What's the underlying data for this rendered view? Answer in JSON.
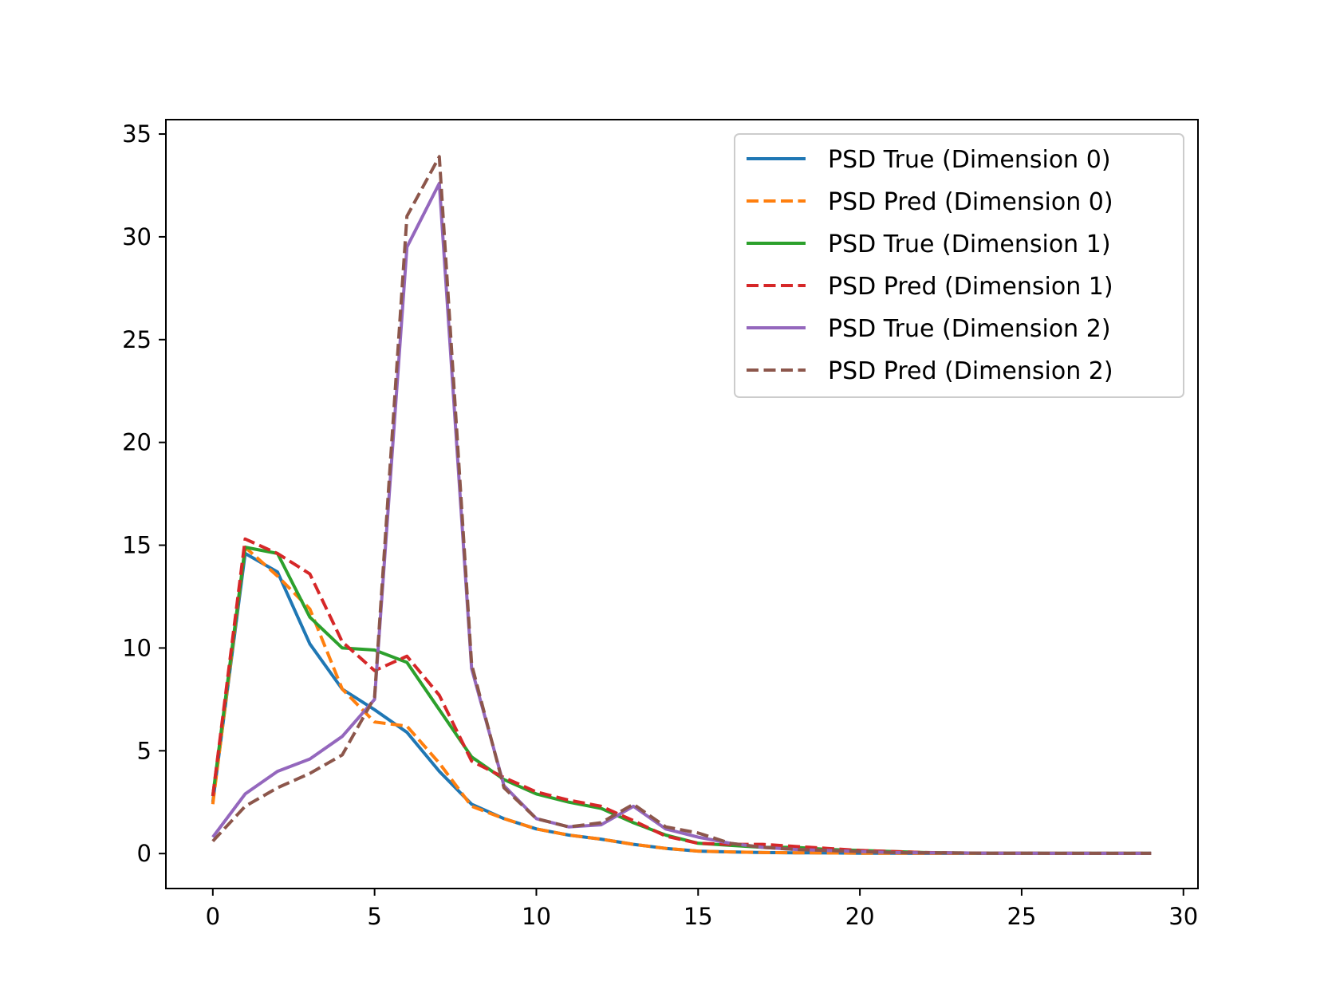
{
  "chart_data": {
    "type": "line",
    "title": "",
    "xlabel": "",
    "ylabel": "",
    "xlim": [
      -1.45,
      30.45
    ],
    "ylim": [
      -1.7,
      35.7
    ],
    "xticks": [
      0,
      5,
      10,
      15,
      20,
      25,
      30
    ],
    "yticks": [
      0,
      5,
      10,
      15,
      20,
      25,
      30,
      35
    ],
    "grid": false,
    "legend_position": "top-right",
    "x": [
      0,
      1,
      2,
      3,
      4,
      5,
      6,
      7,
      8,
      9,
      10,
      11,
      12,
      13,
      14,
      15,
      16,
      17,
      18,
      19,
      20,
      21,
      22,
      23,
      24,
      25,
      26,
      27,
      28,
      29
    ],
    "series": [
      {
        "name": "PSD True (Dimension 0)",
        "color": "#1f77b4",
        "dash": "solid",
        "values": [
          2.5,
          14.6,
          13.7,
          10.2,
          8.0,
          7.0,
          5.9,
          4.0,
          2.4,
          1.7,
          1.2,
          0.9,
          0.7,
          0.45,
          0.25,
          0.12,
          0.08,
          0.05,
          0.04,
          0.03,
          0.02,
          0.02,
          0.01,
          0.01,
          0.01,
          0.01,
          0.01,
          0.01,
          0.01,
          0.01
        ]
      },
      {
        "name": "PSD Pred (Dimension 0)",
        "color": "#ff7f0e",
        "dash": "dashed",
        "values": [
          2.4,
          14.9,
          13.5,
          11.9,
          8.0,
          6.4,
          6.2,
          4.4,
          2.3,
          1.7,
          1.2,
          0.9,
          0.7,
          0.45,
          0.25,
          0.12,
          0.08,
          0.05,
          0.04,
          0.03,
          0.02,
          0.02,
          0.01,
          0.01,
          0.01,
          0.01,
          0.01,
          0.01,
          0.01,
          0.01
        ]
      },
      {
        "name": "PSD True (Dimension 1)",
        "color": "#2ca02c",
        "dash": "solid",
        "values": [
          2.8,
          14.9,
          14.6,
          11.5,
          10.0,
          9.9,
          9.3,
          7.0,
          4.7,
          3.6,
          2.9,
          2.5,
          2.2,
          1.5,
          0.9,
          0.5,
          0.4,
          0.3,
          0.3,
          0.2,
          0.15,
          0.1,
          0.05,
          0.03,
          0.02,
          0.02,
          0.01,
          0.01,
          0.01,
          0.01
        ]
      },
      {
        "name": "PSD Pred (Dimension 1)",
        "color": "#d62728",
        "dash": "dashed",
        "values": [
          2.8,
          15.3,
          14.6,
          13.6,
          10.3,
          8.9,
          9.6,
          7.7,
          4.5,
          3.7,
          3.0,
          2.6,
          2.3,
          1.6,
          0.85,
          0.5,
          0.45,
          0.45,
          0.35,
          0.25,
          0.15,
          0.1,
          0.05,
          0.03,
          0.02,
          0.02,
          0.01,
          0.01,
          0.01,
          0.01
        ]
      },
      {
        "name": "PSD True (Dimension 2)",
        "color": "#9467bd",
        "dash": "solid",
        "values": [
          0.8,
          2.9,
          4.0,
          4.6,
          5.7,
          7.5,
          29.5,
          32.6,
          9.0,
          3.3,
          1.7,
          1.3,
          1.4,
          2.3,
          1.2,
          0.8,
          0.5,
          0.3,
          0.2,
          0.15,
          0.1,
          0.05,
          0.04,
          0.03,
          0.02,
          0.02,
          0.01,
          0.01,
          0.01,
          0.01
        ]
      },
      {
        "name": "PSD Pred (Dimension 2)",
        "color": "#8c564b",
        "dash": "dashed",
        "values": [
          0.6,
          2.3,
          3.2,
          3.9,
          4.8,
          7.6,
          31.0,
          33.9,
          9.2,
          3.2,
          1.7,
          1.3,
          1.5,
          2.4,
          1.3,
          1.0,
          0.5,
          0.3,
          0.2,
          0.15,
          0.1,
          0.05,
          0.04,
          0.03,
          0.02,
          0.02,
          0.01,
          0.01,
          0.01,
          0.01
        ]
      }
    ]
  }
}
